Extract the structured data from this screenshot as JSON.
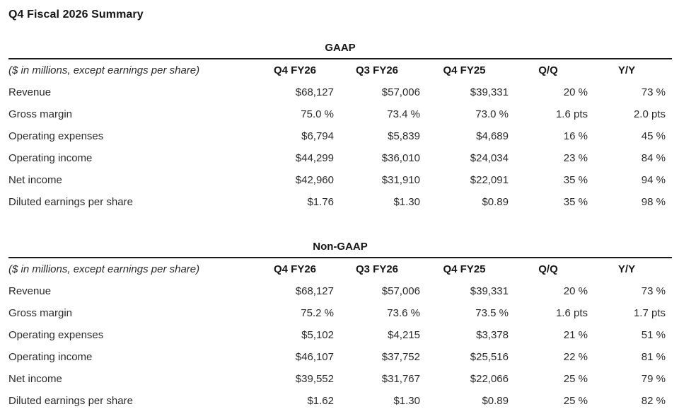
{
  "page": {
    "title": "Q4 Fiscal 2026 Summary"
  },
  "caption": "($ in millions, except earnings per share)",
  "columns": [
    "Q4 FY26",
    "Q3 FY26",
    "Q4 FY25",
    "Q/Q",
    "Y/Y"
  ],
  "tables": [
    {
      "name": "GAAP",
      "rows": [
        {
          "label": "Revenue",
          "values": [
            "$68,127",
            "$57,006",
            "$39,331",
            "20 %",
            "73 %"
          ]
        },
        {
          "label": "Gross margin",
          "values": [
            "75.0 %",
            "73.4 %",
            "73.0 %",
            "1.6 pts",
            "2.0 pts"
          ]
        },
        {
          "label": "Operating expenses",
          "values": [
            "$6,794",
            "$5,839",
            "$4,689",
            "16 %",
            "45 %"
          ]
        },
        {
          "label": "Operating income",
          "values": [
            "$44,299",
            "$36,010",
            "$24,034",
            "23 %",
            "84 %"
          ]
        },
        {
          "label": "Net income",
          "values": [
            "$42,960",
            "$31,910",
            "$22,091",
            "35 %",
            "94 %"
          ]
        },
        {
          "label": "Diluted earnings per share",
          "values": [
            "$1.76",
            "$1.30",
            "$0.89",
            "35 %",
            "98 %"
          ]
        }
      ]
    },
    {
      "name": "Non-GAAP",
      "rows": [
        {
          "label": "Revenue",
          "values": [
            "$68,127",
            "$57,006",
            "$39,331",
            "20 %",
            "73 %"
          ]
        },
        {
          "label": "Gross margin",
          "values": [
            "75.2 %",
            "73.6 %",
            "73.5 %",
            "1.6 pts",
            "1.7 pts"
          ]
        },
        {
          "label": "Operating expenses",
          "values": [
            "$5,102",
            "$4,215",
            "$3,378",
            "21 %",
            "51 %"
          ]
        },
        {
          "label": "Operating income",
          "values": [
            "$46,107",
            "$37,752",
            "$25,516",
            "22 %",
            "81 %"
          ]
        },
        {
          "label": "Net income",
          "values": [
            "$39,552",
            "$31,767",
            "$22,066",
            "25 %",
            "79 %"
          ]
        },
        {
          "label": "Diluted earnings per share",
          "values": [
            "$1.62",
            "$1.30",
            "$0.89",
            "25 %",
            "82 %"
          ]
        }
      ]
    }
  ],
  "colors": {
    "text": "#2b2b2b",
    "heading": "#161616",
    "rule": "#1a1a1a",
    "background": "#ffffff"
  }
}
